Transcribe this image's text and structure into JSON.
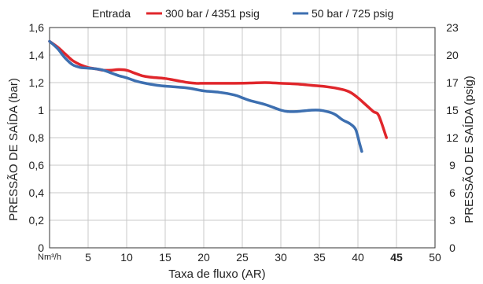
{
  "chart_data": {
    "type": "line",
    "legend": {
      "prefix": "Entrada",
      "placement": "top-center"
    },
    "xlabel": "Taxa de fluxo (AR)",
    "x_unit_label": "Nm³/h",
    "ylabel_left": "PRESSÃO DE SAÍDA (bar)",
    "ylabel_right": "PRESSÃO DE SAÍDA (psig)",
    "xlim": [
      0,
      50
    ],
    "ylim": [
      0,
      1.6
    ],
    "grid": true,
    "x_ticks": [
      {
        "value": 5,
        "label": "5",
        "bold": false
      },
      {
        "value": 10,
        "label": "10",
        "bold": false
      },
      {
        "value": 15,
        "label": "15",
        "bold": false
      },
      {
        "value": 20,
        "label": "20",
        "bold": false
      },
      {
        "value": 25,
        "label": "25",
        "bold": false
      },
      {
        "value": 30,
        "label": "30",
        "bold": false
      },
      {
        "value": 35,
        "label": "35",
        "bold": false
      },
      {
        "value": 40,
        "label": "40",
        "bold": false
      },
      {
        "value": 45,
        "label": "45",
        "bold": true
      },
      {
        "value": 50,
        "label": "50",
        "bold": false
      }
    ],
    "y_ticks_left": [
      {
        "value": 0,
        "label": "0"
      },
      {
        "value": 0.2,
        "label": "0,2"
      },
      {
        "value": 0.4,
        "label": "0,4"
      },
      {
        "value": 0.6,
        "label": "0,6"
      },
      {
        "value": 0.8,
        "label": "0,8"
      },
      {
        "value": 1.0,
        "label": "1"
      },
      {
        "value": 1.2,
        "label": "1,2"
      },
      {
        "value": 1.4,
        "label": "1,4"
      },
      {
        "value": 1.6,
        "label": "1,6"
      }
    ],
    "y_ticks_right": [
      {
        "value": 0,
        "label": "0"
      },
      {
        "value": 0.2,
        "label": "3"
      },
      {
        "value": 0.4,
        "label": "6"
      },
      {
        "value": 0.6,
        "label": "9"
      },
      {
        "value": 0.8,
        "label": "12"
      },
      {
        "value": 1.0,
        "label": "15"
      },
      {
        "value": 1.2,
        "label": "17"
      },
      {
        "value": 1.4,
        "label": "20"
      },
      {
        "value": 1.6,
        "label": "23"
      }
    ],
    "series": [
      {
        "name": "300 bar / 4351 psig",
        "color": "#e0262b",
        "x": [
          0,
          1,
          2,
          3,
          4,
          5,
          6,
          7,
          8,
          9,
          10,
          11,
          12,
          13,
          14,
          15,
          16,
          17,
          18,
          19,
          20,
          22,
          24,
          26,
          28,
          30,
          32,
          34,
          36,
          38,
          39,
          40,
          41,
          42,
          42.7,
          43.7
        ],
        "y": [
          1.5,
          1.46,
          1.41,
          1.36,
          1.33,
          1.31,
          1.3,
          1.29,
          1.29,
          1.295,
          1.29,
          1.27,
          1.25,
          1.24,
          1.235,
          1.23,
          1.22,
          1.21,
          1.2,
          1.195,
          1.195,
          1.195,
          1.195,
          1.197,
          1.2,
          1.195,
          1.19,
          1.18,
          1.17,
          1.15,
          1.13,
          1.09,
          1.04,
          0.99,
          0.96,
          0.8
        ]
      },
      {
        "name": "50 bar / 725 psig",
        "color": "#3d6fb0",
        "x": [
          0,
          1,
          2,
          3,
          4,
          5,
          6,
          7,
          8,
          9,
          10,
          11,
          12,
          14,
          16,
          18,
          20,
          22,
          24,
          25,
          26,
          28,
          30,
          31,
          32,
          34,
          35,
          36,
          37,
          38,
          39,
          39.7,
          40.2,
          40.5
        ],
        "y": [
          1.5,
          1.45,
          1.38,
          1.33,
          1.31,
          1.305,
          1.3,
          1.29,
          1.27,
          1.25,
          1.235,
          1.215,
          1.2,
          1.18,
          1.17,
          1.16,
          1.14,
          1.13,
          1.11,
          1.09,
          1.07,
          1.04,
          1.0,
          0.99,
          0.99,
          1.0,
          1.0,
          0.99,
          0.97,
          0.93,
          0.9,
          0.86,
          0.76,
          0.7
        ]
      }
    ]
  }
}
